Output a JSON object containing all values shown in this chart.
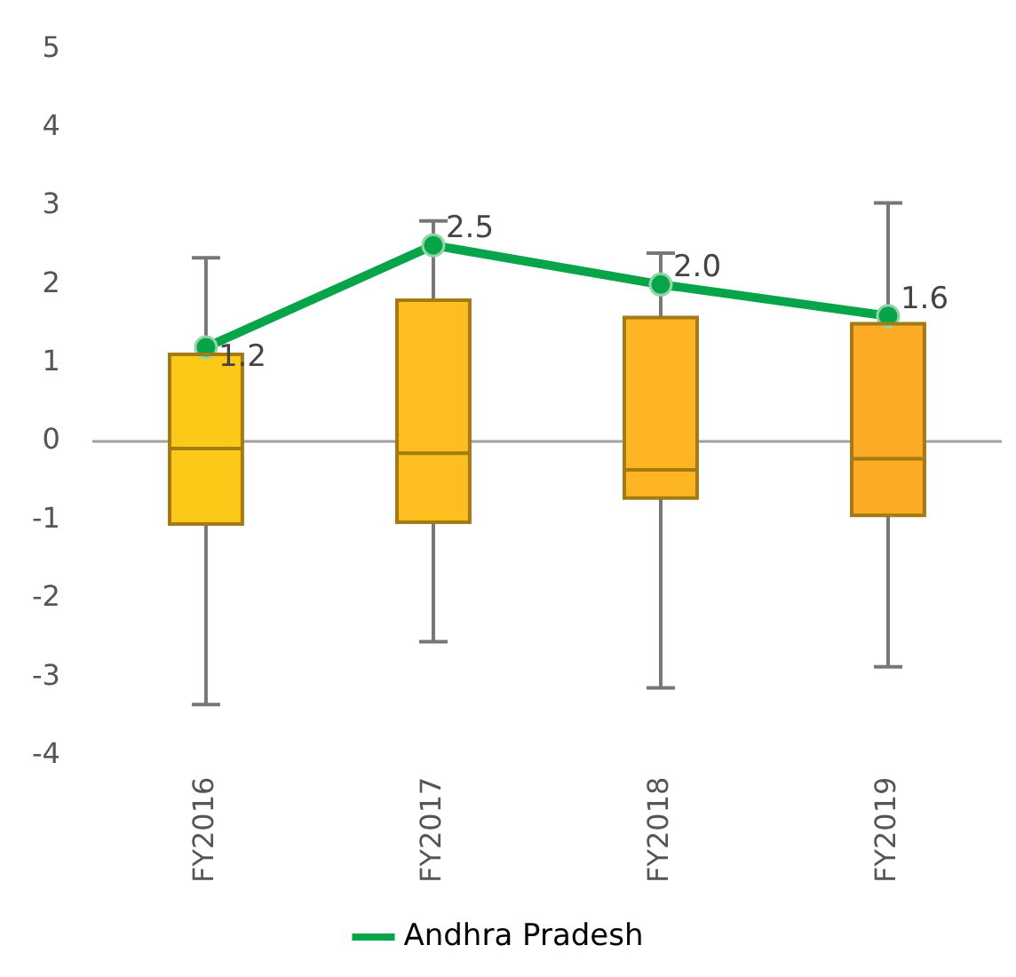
{
  "chart_data": {
    "type": "box",
    "categories": [
      "FY2016",
      "FY2017",
      "FY2018",
      "FY2019"
    ],
    "boxes": [
      {
        "low": -3.35,
        "q1": -1.05,
        "median": -0.09,
        "q3": 1.11,
        "high": 2.34
      },
      {
        "low": -2.55,
        "q1": -1.03,
        "median": -0.15,
        "q3": 1.8,
        "high": 2.81
      },
      {
        "low": -3.14,
        "q1": -0.72,
        "median": -0.36,
        "q3": 1.58,
        "high": 2.4
      },
      {
        "low": -2.87,
        "q1": -0.94,
        "median": -0.22,
        "q3": 1.5,
        "high": 3.04
      }
    ],
    "colors": [
      "#fdc918",
      "#fdbf1f",
      "#fdb622",
      "#fbab25"
    ],
    "series": [
      {
        "type": "line",
        "name": "Andhra Pradesh",
        "color": "#08a44a",
        "values": [
          1.2,
          2.5,
          2.0,
          1.6
        ],
        "value_labels": [
          "1.2",
          "2.5",
          "2.0",
          "1.6"
        ]
      }
    ],
    "ylim": [
      -4,
      5
    ],
    "yticks": [
      -4,
      -3,
      -2,
      -1,
      0,
      1,
      2,
      3,
      4,
      5
    ],
    "ref_lines": [
      {
        "axis": "y",
        "value": 0,
        "color": "#a0a0a0"
      }
    ],
    "grid": false,
    "legend": "bottom",
    "marker": "circle",
    "line_style": "solid"
  }
}
